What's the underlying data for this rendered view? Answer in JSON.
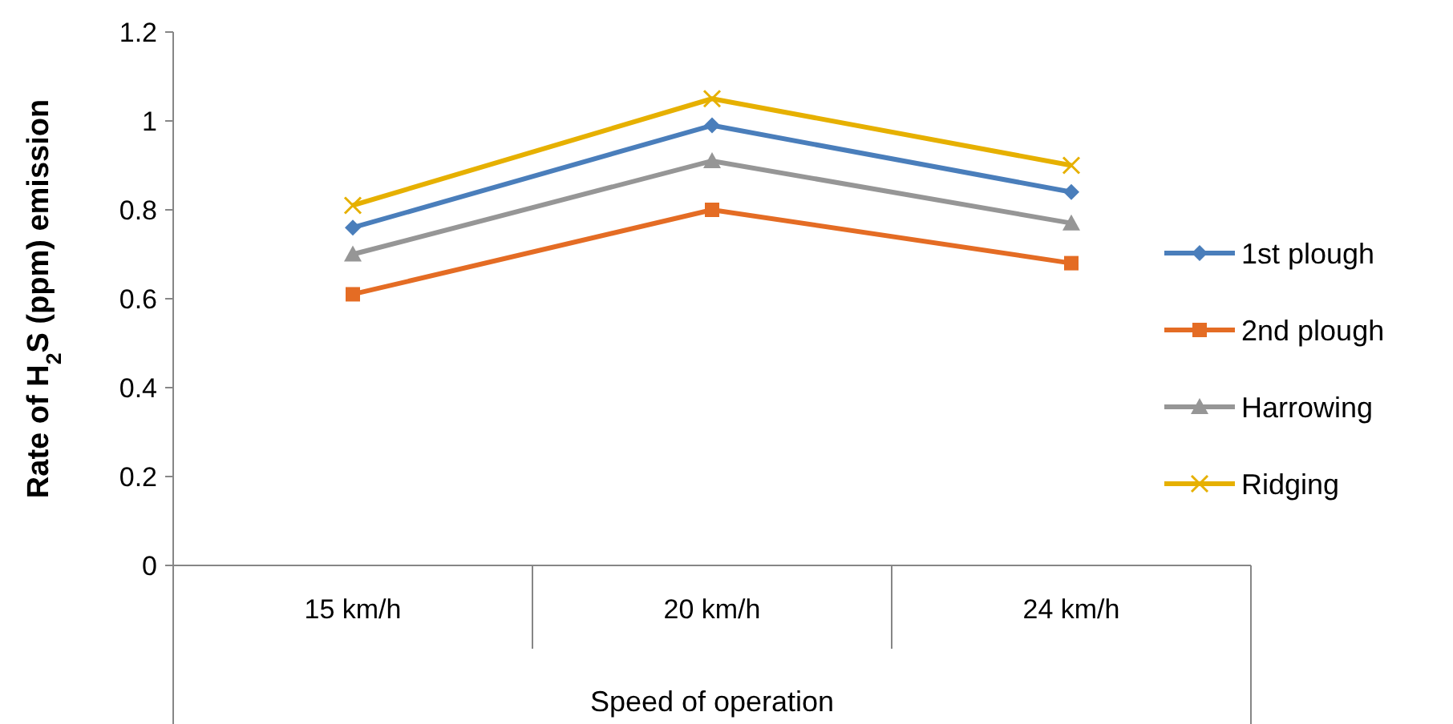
{
  "chart_data": {
    "type": "line",
    "xlabel": "Speed of operation",
    "ylabel": "Rate of H$_{2}$S (ppm) emission",
    "categories": [
      "15 km/h",
      "20 km/h",
      "24 km/h"
    ],
    "ylim": [
      0,
      1.2
    ],
    "yticks": [
      0,
      0.2,
      0.4,
      0.6,
      0.8,
      1,
      1.2
    ],
    "grid": false,
    "legend": "right",
    "line_style": "solid",
    "series": [
      {
        "name": "1st plough",
        "color": "#4a7ebb",
        "marker": "diamond",
        "values": [
          0.76,
          0.99,
          0.84
        ]
      },
      {
        "name": "2nd plough",
        "color": "#e46c24",
        "marker": "square",
        "values": [
          0.61,
          0.8,
          0.68
        ]
      },
      {
        "name": "Harrowing",
        "color": "#969696",
        "marker": "triangle",
        "values": [
          0.7,
          0.91,
          0.77
        ]
      },
      {
        "name": "Ridging",
        "color": "#e6b000",
        "marker": "cross",
        "values": [
          0.81,
          1.05,
          0.9
        ]
      }
    ]
  }
}
